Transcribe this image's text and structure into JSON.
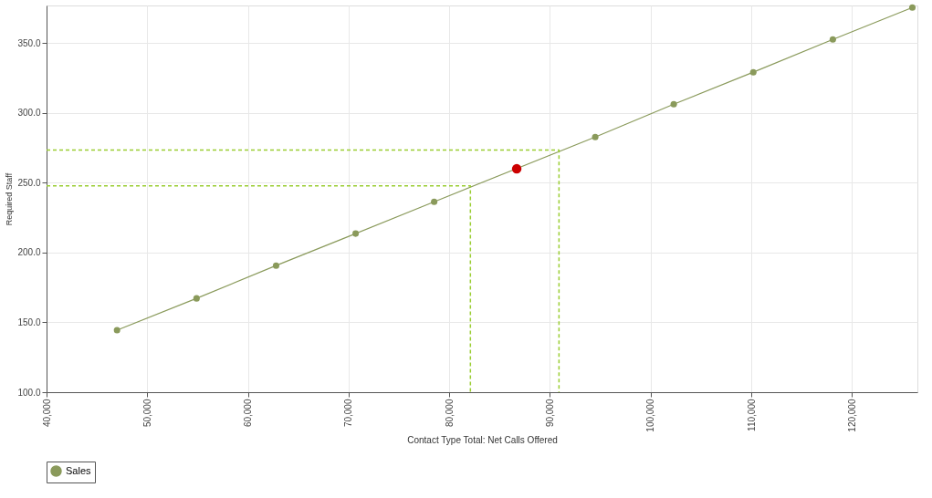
{
  "chart_data": {
    "type": "line",
    "xlabel": "Contact Type Total: Net Calls Offered",
    "ylabel": "Required Staff",
    "xlim": [
      40000,
      126500
    ],
    "ylim": [
      100,
      377
    ],
    "xticks": [
      {
        "value": 40000,
        "label": "40,000"
      },
      {
        "value": 50000,
        "label": "50,000"
      },
      {
        "value": 60000,
        "label": "60,000"
      },
      {
        "value": 70000,
        "label": "70,000"
      },
      {
        "value": 80000,
        "label": "80,000"
      },
      {
        "value": 90000,
        "label": "90,000"
      },
      {
        "value": 100000,
        "label": "100,000"
      },
      {
        "value": 110000,
        "label": "110,000"
      },
      {
        "value": 120000,
        "label": "120,000"
      }
    ],
    "yticks": [
      {
        "value": 100,
        "label": "100.0"
      },
      {
        "value": 150,
        "label": "150.0"
      },
      {
        "value": 200,
        "label": "200.0"
      },
      {
        "value": 250,
        "label": "250.0"
      },
      {
        "value": 300,
        "label": "300.0"
      },
      {
        "value": 350,
        "label": "350.0"
      }
    ],
    "grid": true,
    "legend": "bottom",
    "marker": "circle",
    "series": [
      {
        "name": "Sales",
        "color": "#8a9a5b",
        "x": [
          47000,
          54900,
          62800,
          70700,
          78500,
          94500,
          102300,
          110200,
          118100,
          126000
        ],
        "values": [
          144.4,
          167.2,
          190.7,
          213.6,
          236.4,
          282.8,
          306.3,
          329.2,
          352.7,
          375.5
        ]
      },
      {
        "type": "scatter",
        "color": "#cc0000",
        "x": [
          86700
        ],
        "values": [
          260
        ]
      },
      {
        "type": "line",
        "line_style": "dashed",
        "marker": "none",
        "color": "#9acd32",
        "x": [
          40000,
          90900,
          90900
        ],
        "values": [
          273.4,
          273.4,
          100
        ]
      },
      {
        "type": "line",
        "line_style": "dashed",
        "marker": "none",
        "color": "#9acd32",
        "x": [
          40000,
          82100,
          82100
        ],
        "values": [
          247.8,
          247.8,
          100
        ]
      }
    ]
  }
}
